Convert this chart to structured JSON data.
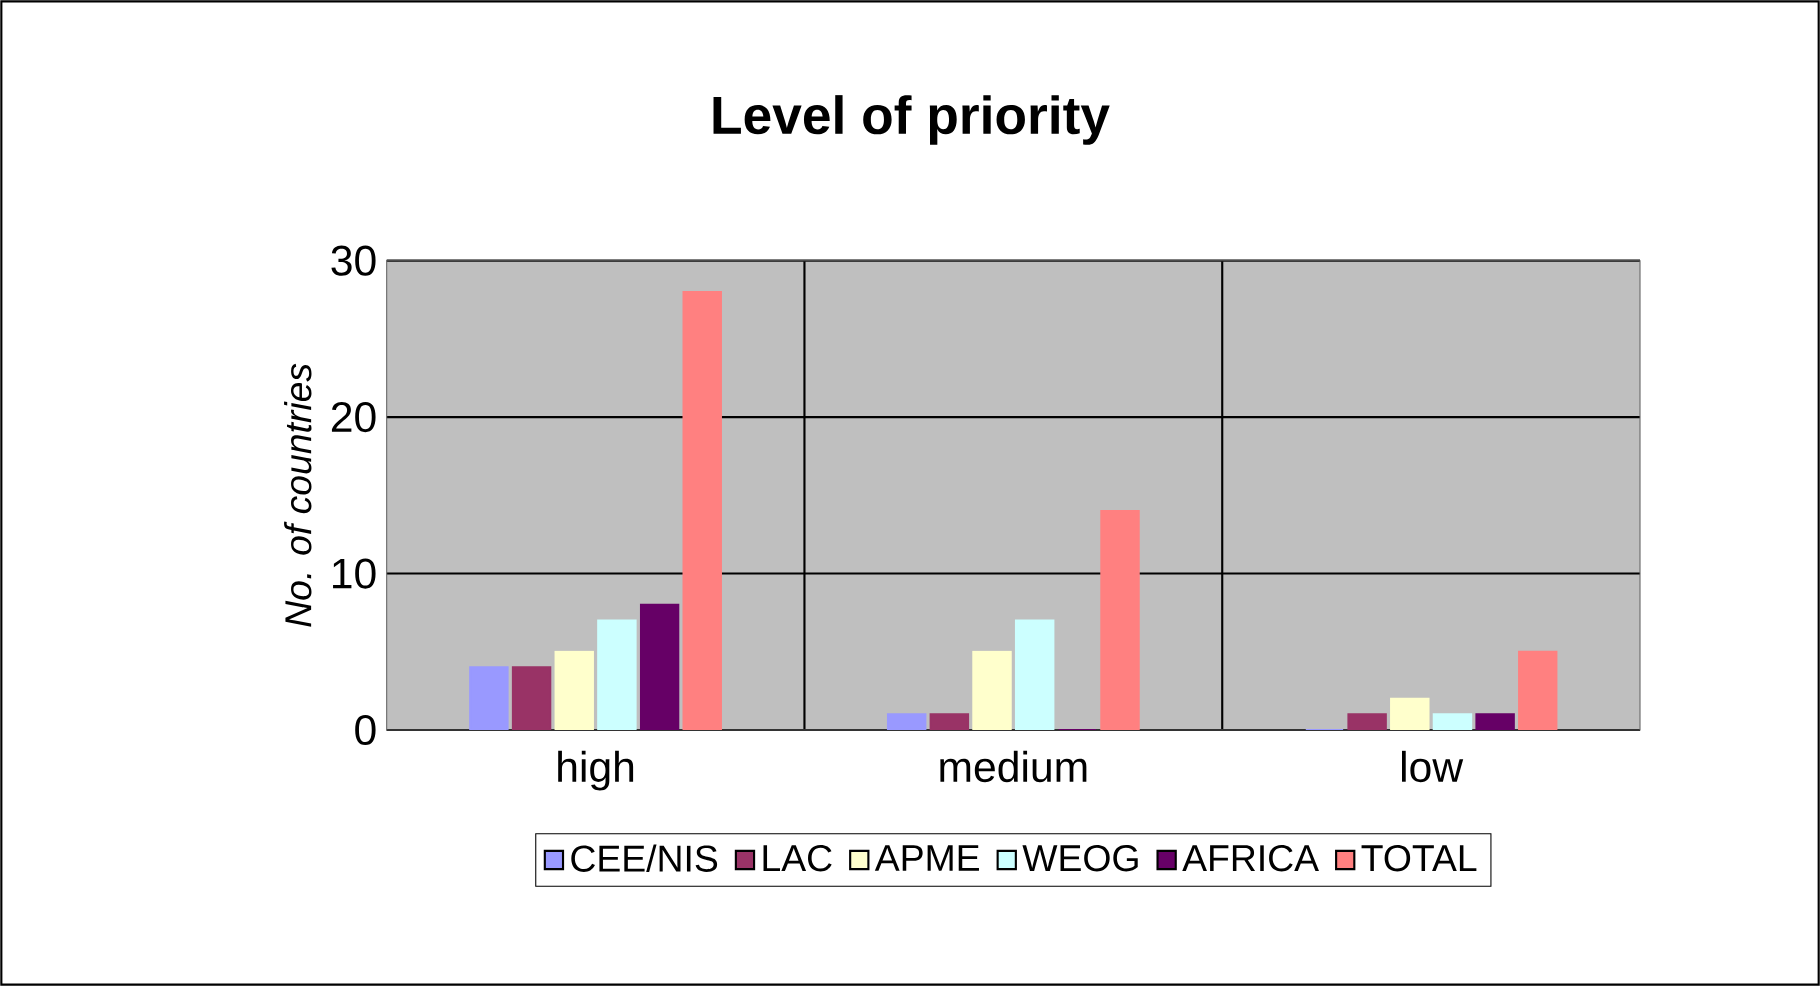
{
  "chart_data": {
    "type": "bar",
    "title": "Level of priority",
    "ylabel": "No. of countries",
    "categories": [
      "high",
      "medium",
      "low"
    ],
    "series": [
      {
        "name": "CEE/NIS",
        "color": "#9999ff",
        "values": [
          4,
          1,
          0
        ]
      },
      {
        "name": "LAC",
        "color": "#993366",
        "values": [
          4,
          1,
          1
        ]
      },
      {
        "name": "APME",
        "color": "#ffffcc",
        "values": [
          5,
          5,
          2
        ]
      },
      {
        "name": "WEOG",
        "color": "#ccffff",
        "values": [
          7,
          7,
          1
        ]
      },
      {
        "name": "AFRICA",
        "color": "#660066",
        "values": [
          8,
          0,
          1
        ]
      },
      {
        "name": "TOTAL",
        "color": "#ff8080",
        "values": [
          28,
          14,
          5
        ]
      }
    ],
    "ylim": [
      0,
      30
    ],
    "yticks": [
      0,
      10,
      20,
      30
    ],
    "grid": true,
    "legend": "bottom"
  }
}
